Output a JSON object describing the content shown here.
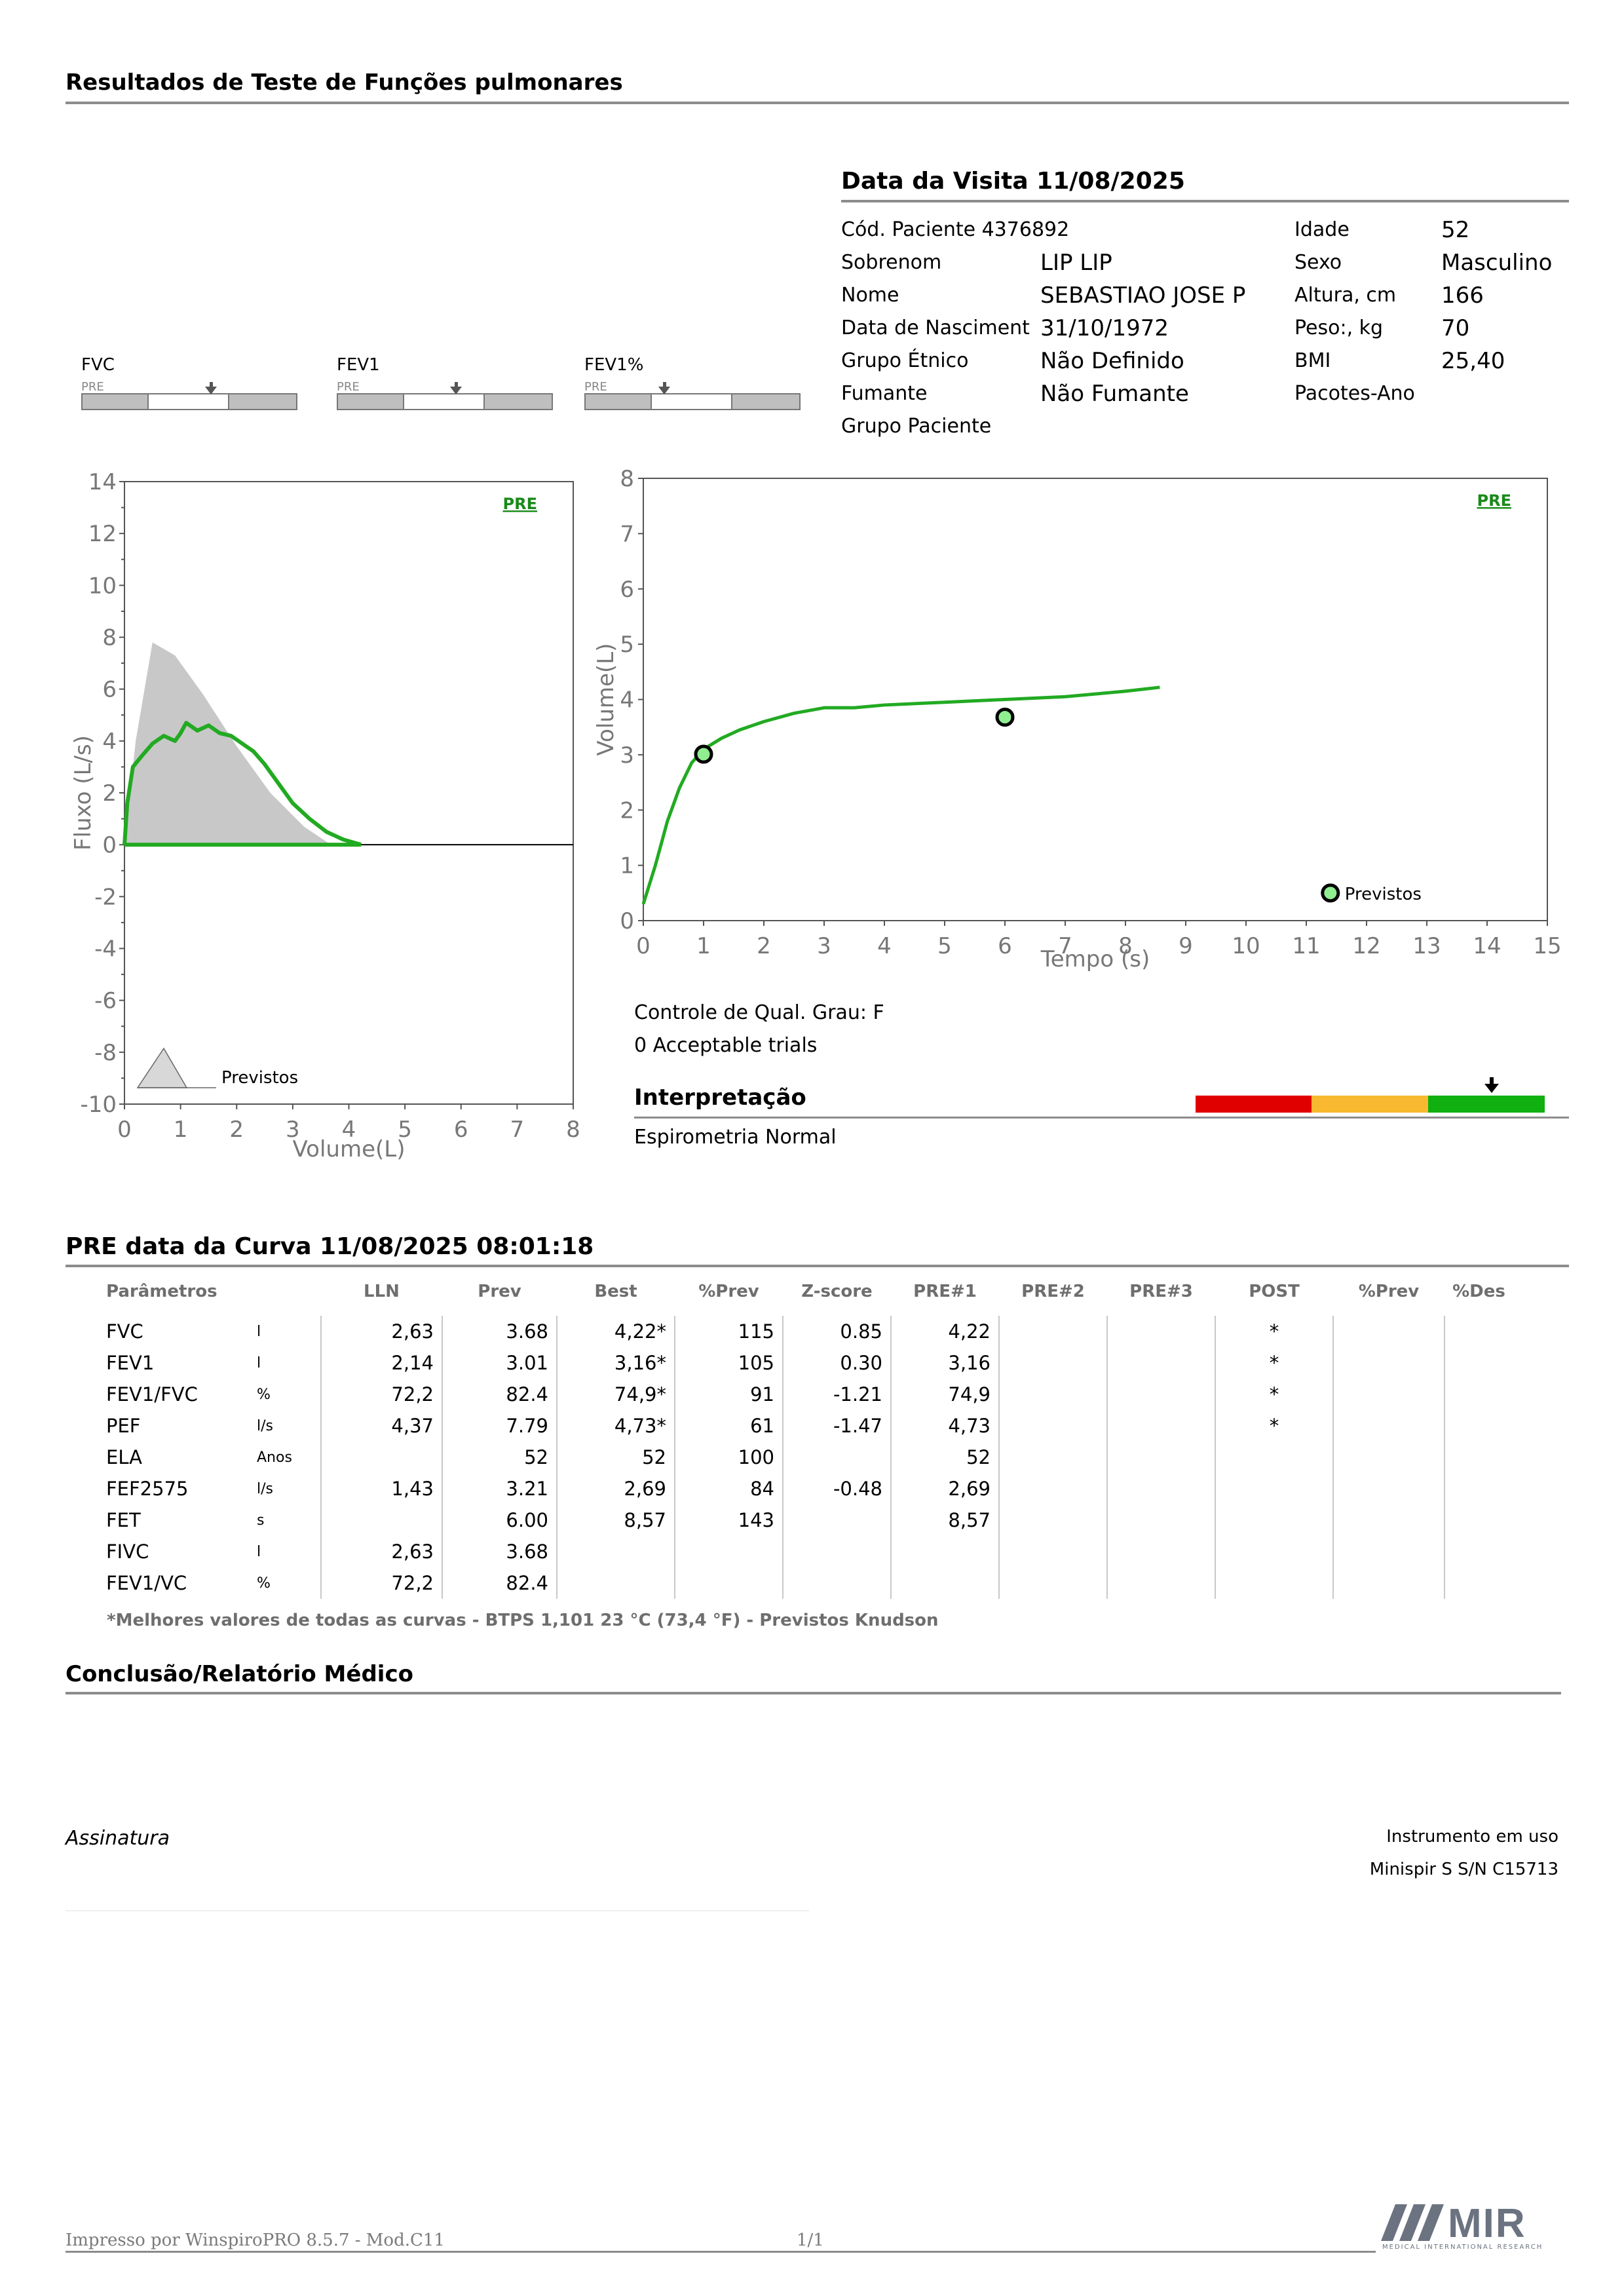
{
  "header": {
    "title": "Resultados de Teste de Funções pulmonares"
  },
  "visit": {
    "title": "Data da Visita 11/08/2025",
    "patient_code": "Cód. Paciente 4376892",
    "rows": [
      {
        "label": "Sobrenom",
        "value": "LIP LIP"
      },
      {
        "label": "Nome",
        "value": "SEBASTIAO JOSE P"
      },
      {
        "label": "Data de Nasciment",
        "value": "31/10/1972"
      },
      {
        "label": "Grupo Étnico",
        "value": "Não Definido"
      },
      {
        "label": "Fumante",
        "value": "Não Fumante"
      },
      {
        "label": "Grupo Paciente",
        "value": ""
      }
    ],
    "right_rows": [
      {
        "label": "Idade",
        "value": "52"
      },
      {
        "label": "Sexo",
        "value": "Masculino"
      },
      {
        "label": "Altura, cm",
        "value": "166"
      },
      {
        "label": "Peso:, kg",
        "value": "70"
      },
      {
        "label": "BMI",
        "value": "25,40"
      },
      {
        "label": "Pacotes-Ano",
        "value": ""
      }
    ]
  },
  "indicators": [
    {
      "label": "FVC",
      "tag": "PRE",
      "marker": 0.6
    },
    {
      "label": "FEV1",
      "tag": "PRE",
      "marker": 0.55
    },
    {
      "label": "FEV1%",
      "tag": "PRE",
      "marker": 0.37
    }
  ],
  "chart_data": [
    {
      "type": "line",
      "xlabel": "Volume(L)",
      "ylabel": "Fluxo (L/s)",
      "xlim": [
        0,
        8
      ],
      "ylim": [
        -10,
        14
      ],
      "xticks": [
        "0",
        "1",
        "2",
        "3",
        "4",
        "5",
        "6",
        "7",
        "8"
      ],
      "yticks": [
        "14",
        "12",
        "10",
        "8",
        "6",
        "4",
        "2",
        "0",
        "-2",
        "-4",
        "-6",
        "-8",
        "-10"
      ],
      "tag": "PRE",
      "legend": "Previstos",
      "series": [
        {
          "name": "Previstos",
          "color": "#c8c8c8",
          "x": [
            0,
            0.2,
            0.5,
            0.9,
            1.4,
            2.0,
            2.6,
            3.2,
            3.68
          ],
          "y": [
            0,
            4.0,
            7.8,
            7.3,
            5.8,
            3.8,
            2.0,
            0.7,
            0
          ]
        },
        {
          "name": "PRE",
          "color": "#22aa22",
          "x": [
            0,
            0.05,
            0.15,
            0.3,
            0.5,
            0.7,
            0.9,
            1.0,
            1.1,
            1.3,
            1.5,
            1.7,
            1.9,
            2.1,
            2.3,
            2.5,
            2.7,
            3.0,
            3.3,
            3.6,
            3.9,
            4.22
          ],
          "y": [
            0,
            1.6,
            3.0,
            3.4,
            3.9,
            4.2,
            4.0,
            4.3,
            4.7,
            4.4,
            4.6,
            4.3,
            4.2,
            3.9,
            3.6,
            3.1,
            2.5,
            1.6,
            1.0,
            0.5,
            0.2,
            0
          ]
        }
      ]
    },
    {
      "type": "line",
      "xlabel": "Tempo (s)",
      "ylabel": "Volume(L)",
      "xlim": [
        0,
        15
      ],
      "ylim": [
        0,
        8
      ],
      "xticks": [
        "0",
        "1",
        "2",
        "3",
        "4",
        "5",
        "6",
        "7",
        "8",
        "9",
        "10",
        "11",
        "12",
        "13",
        "14",
        "15"
      ],
      "yticks": [
        "8",
        "7",
        "6",
        "5",
        "4",
        "3",
        "2",
        "1",
        "0"
      ],
      "tag": "PRE",
      "legend": "Previstos",
      "series": [
        {
          "name": "PRE",
          "color": "#22aa22",
          "x": [
            0,
            0.2,
            0.4,
            0.6,
            0.8,
            1.0,
            1.3,
            1.6,
            2.0,
            2.5,
            3.0,
            3.5,
            4.0,
            5.0,
            6.0,
            7.0,
            8.0,
            8.57
          ],
          "y": [
            0.3,
            1.0,
            1.8,
            2.4,
            2.85,
            3.1,
            3.3,
            3.45,
            3.6,
            3.75,
            3.85,
            3.85,
            3.9,
            3.95,
            4.0,
            4.05,
            4.15,
            4.22
          ]
        },
        {
          "name": "Previstos",
          "color": "#90ee90",
          "x": [
            1.0,
            6.0
          ],
          "y": [
            3.01,
            3.68
          ]
        }
      ]
    }
  ],
  "quality": {
    "grade": "Controle de Qual. Grau: F",
    "trials": "0 Acceptable trials",
    "interp_title": "Interpretação",
    "interp_text": "Espirometria Normal",
    "scale_colors": [
      "#e00000",
      "#f8b830",
      "#10b010"
    ],
    "scale_marker": 0.85
  },
  "curve": {
    "title": "PRE data da Curva 11/08/2025   08:01:18",
    "headers": [
      "Parâmetros",
      "",
      "LLN",
      "Prev",
      "Best",
      "%Prev",
      "Z-score",
      "PRE#1",
      "PRE#2",
      "PRE#3",
      "POST",
      "%Prev",
      "%Des"
    ],
    "rows": [
      [
        "FVC",
        "l",
        "2,63",
        "3.68",
        "4,22*",
        "115",
        "0.85",
        "4,22",
        "",
        "",
        "*",
        "",
        ""
      ],
      [
        "FEV1",
        "l",
        "2,14",
        "3.01",
        "3,16*",
        "105",
        "0.30",
        "3,16",
        "",
        "",
        "*",
        "",
        ""
      ],
      [
        "FEV1/FVC",
        "%",
        "72,2",
        "82.4",
        "74,9*",
        "91",
        "-1.21",
        "74,9",
        "",
        "",
        "*",
        "",
        ""
      ],
      [
        "PEF",
        "l/s",
        "4,37",
        "7.79",
        "4,73*",
        "61",
        "-1.47",
        "4,73",
        "",
        "",
        "*",
        "",
        ""
      ],
      [
        "ELA",
        "Anos",
        "",
        "52",
        "52",
        "100",
        "",
        "52",
        "",
        "",
        "",
        "",
        ""
      ],
      [
        "FEF2575",
        "l/s",
        "1,43",
        "3.21",
        "2,69",
        "84",
        "-0.48",
        "2,69",
        "",
        "",
        "",
        "",
        ""
      ],
      [
        "FET",
        "s",
        "",
        "6.00",
        "8,57",
        "143",
        "",
        "8,57",
        "",
        "",
        "",
        "",
        ""
      ],
      [
        "FIVC",
        "l",
        "2,63",
        "3.68",
        "",
        "",
        "",
        "",
        "",
        "",
        "",
        "",
        ""
      ],
      [
        "FEV1/VC",
        "%",
        "72,2",
        "82.4",
        "",
        "",
        "",
        "",
        "",
        "",
        "",
        "",
        ""
      ]
    ],
    "footnote": "*Melhores valores de todas as curvas - BTPS  1,101  23 °C  (73,4 °F) - Previstos Knudson"
  },
  "conclusion": {
    "title": "Conclusão/Relatório Médico"
  },
  "signature": {
    "label": "Assinatura"
  },
  "instrument": {
    "label": "Instrumento em uso",
    "value": "Minispir S S/N C15713"
  },
  "footer": {
    "printed": "Impresso por WinspiroPRO  8.5.7 - Mod.C11",
    "page": "1/1",
    "logo_text": "MIR",
    "logo_sub": "MEDICAL INTERNATIONAL RESEARCH"
  }
}
